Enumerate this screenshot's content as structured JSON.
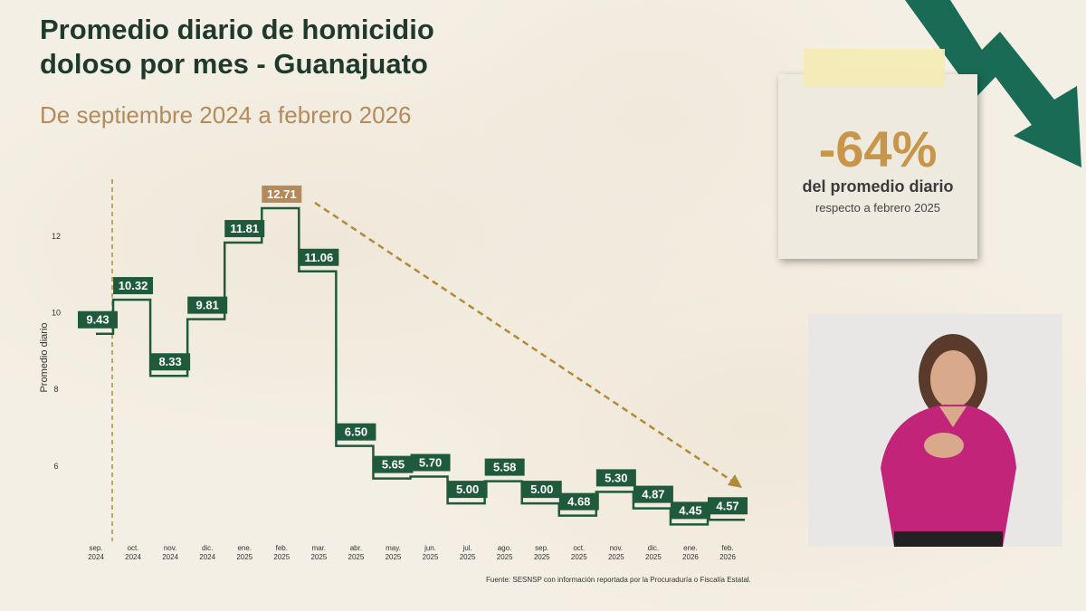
{
  "title_line1": "Promedio diario de homicidio",
  "title_line2": "doloso por mes - Guanajuato",
  "subtitle": "De septiembre 2024 a febrero 2026",
  "source": "Fuente: SESNSP con información reportada por la Procuraduría o Fiscalía Estatal.",
  "callout": {
    "value": "-64%",
    "line1": "del promedio diario",
    "line2": "respecto a febrero 2025"
  },
  "colors": {
    "green": "#1f5a3c",
    "highlight": "#b58a5a",
    "trend": "#b08a3a",
    "arrow": "#1a6b55"
  },
  "chart_data": {
    "type": "line",
    "style": "step",
    "ylabel": "Promedio diario",
    "ylim": [
      4,
      13
    ],
    "yticks": [
      6,
      8,
      10,
      12
    ],
    "grid": false,
    "categories": [
      [
        "sep.",
        "2024"
      ],
      [
        "oct.",
        "2024"
      ],
      [
        "nov.",
        "2024"
      ],
      [
        "dic.",
        "2024"
      ],
      [
        "ene.",
        "2025"
      ],
      [
        "feb.",
        "2025"
      ],
      [
        "mar.",
        "2025"
      ],
      [
        "abr.",
        "2025"
      ],
      [
        "may.",
        "2025"
      ],
      [
        "jun.",
        "2025"
      ],
      [
        "jul.",
        "2025"
      ],
      [
        "ago.",
        "2025"
      ],
      [
        "sep.",
        "2025"
      ],
      [
        "oct.",
        "2025"
      ],
      [
        "nov.",
        "2025"
      ],
      [
        "dic.",
        "2025"
      ],
      [
        "ene.",
        "2026"
      ],
      [
        "feb.",
        "2026"
      ]
    ],
    "values": [
      9.43,
      10.32,
      8.33,
      9.81,
      11.81,
      12.71,
      11.06,
      6.5,
      5.65,
      5.7,
      5.0,
      5.58,
      5.0,
      4.68,
      5.3,
      4.87,
      4.45,
      4.57
    ],
    "labels": [
      "9.43",
      "10.32",
      "8.33",
      "9.81",
      "11.81",
      "12.71",
      "11.06",
      "6.50",
      "5.65",
      "5.70",
      "5.00",
      "5.58",
      "5.00",
      "4.68",
      "5.30",
      "4.87",
      "4.45",
      "4.57"
    ],
    "highlight_index": 5,
    "annotations": [
      "dashed vertical line after sep. 2024",
      "dashed trend arrow from feb. 2025 to feb. 2026"
    ]
  }
}
